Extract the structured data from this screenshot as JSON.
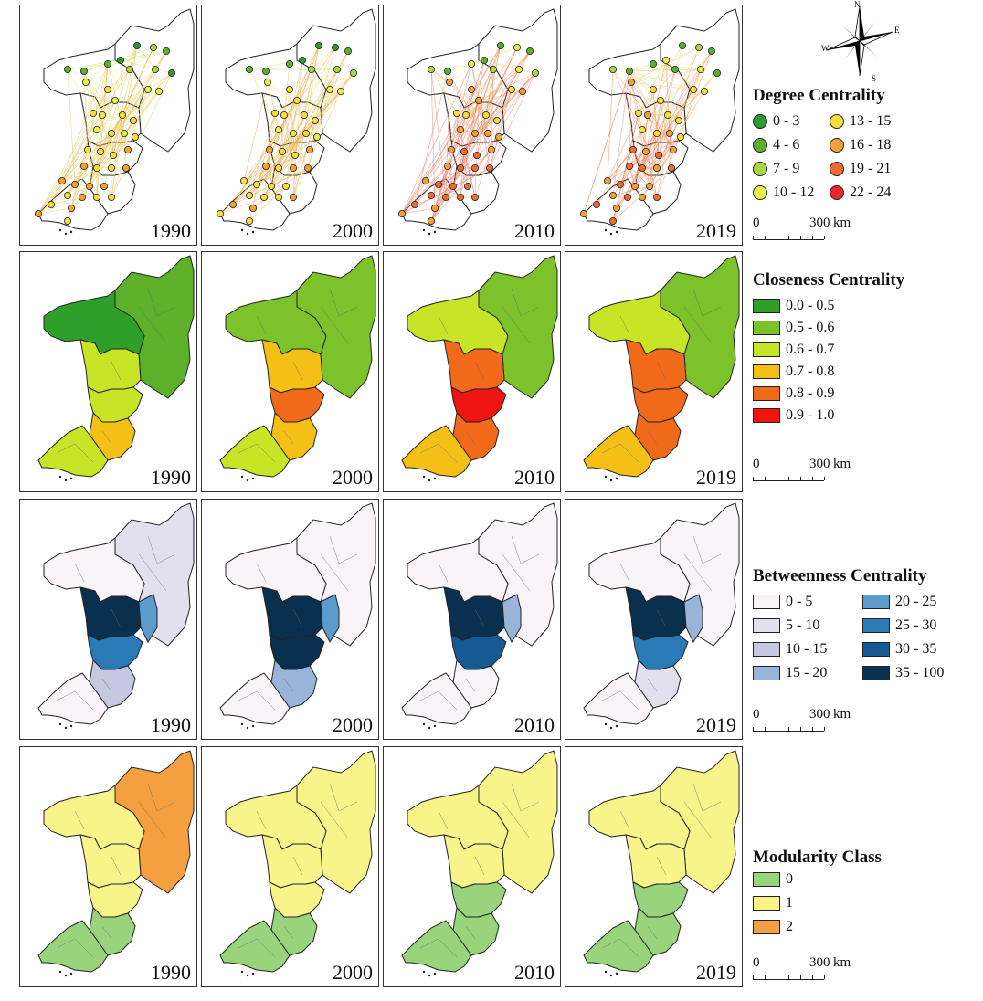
{
  "years": [
    "1990",
    "2000",
    "2010",
    "2019"
  ],
  "compass": {
    "n": "N",
    "s": "S",
    "e": "E",
    "w": "W"
  },
  "scale": {
    "zero": "0",
    "value": "300",
    "unit": "km"
  },
  "degree": {
    "title": "Degree Centrality",
    "items": [
      {
        "label": "0 - 3",
        "color": "#2e9a2e"
      },
      {
        "label": "4 - 6",
        "color": "#5cb030"
      },
      {
        "label": "7 - 9",
        "color": "#a8d840"
      },
      {
        "label": "10 - 12",
        "color": "#e6f04a"
      },
      {
        "label": "13 - 15",
        "color": "#f8dc38"
      },
      {
        "label": "16 - 18",
        "color": "#f4a034"
      },
      {
        "label": "19 - 21",
        "color": "#ee6a2e"
      },
      {
        "label": "22 - 24",
        "color": "#e8282a"
      }
    ]
  },
  "closeness": {
    "title": "Closeness Centrality",
    "items": [
      {
        "label": "0.0 - 0.5",
        "color": "#2ea02a"
      },
      {
        "label": "0.5 - 0.6",
        "color": "#7cc22a"
      },
      {
        "label": "0.6 - 0.7",
        "color": "#c8e426"
      },
      {
        "label": "0.7 - 0.8",
        "color": "#f4c016"
      },
      {
        "label": "0.8 - 0.9",
        "color": "#f06a1a"
      },
      {
        "label": "0.9 - 1.0",
        "color": "#ee1410"
      }
    ]
  },
  "betweenness": {
    "title": "Betweenness Centrality",
    "items": [
      {
        "label": "0 - 5",
        "color": "#f8f4f8"
      },
      {
        "label": "5 - 10",
        "color": "#e2e0ee"
      },
      {
        "label": "10 - 15",
        "color": "#c4c8e0"
      },
      {
        "label": "15 - 20",
        "color": "#98b4d8"
      },
      {
        "label": "20 - 25",
        "color": "#5c9ccc"
      },
      {
        "label": "25 - 30",
        "color": "#2a7ab8"
      },
      {
        "label": "30 - 35",
        "color": "#165a94"
      },
      {
        "label": "35 - 100",
        "color": "#0a3050"
      }
    ]
  },
  "modularity": {
    "title": "Modularity Class",
    "items": [
      {
        "label": "0",
        "color": "#98d47c"
      },
      {
        "label": "1",
        "color": "#f8f48a"
      },
      {
        "label": "2",
        "color": "#f4a040"
      }
    ]
  },
  "maps": {
    "degree": [
      {
        "north": "#b8e05a",
        "mid": "#f4e66a",
        "south": "#f6d058",
        "edge": "#e8c050"
      },
      {
        "north": "#c4e462",
        "mid": "#f6dc60",
        "south": "#f4b850",
        "edge": "#ecb050"
      },
      {
        "north": "#d8ec66",
        "mid": "#f4a84c",
        "south": "#f0904a",
        "edge": "#ec7860"
      },
      {
        "north": "#c8e460",
        "mid": "#f6c858",
        "south": "#f0a04c",
        "edge": "#ec8a5a"
      }
    ],
    "closeness": [
      {
        "nw": "#2ea02a",
        "ne": "#5cb02a",
        "mid": "#c8e426",
        "core": "#c8e426",
        "south": "#f4c016",
        "sw": "#c8e426"
      },
      {
        "nw": "#7cc22a",
        "ne": "#7cc22a",
        "mid": "#f4c016",
        "core": "#f06a1a",
        "south": "#f4c016",
        "sw": "#c8e426"
      },
      {
        "nw": "#c8e426",
        "ne": "#7cc22a",
        "mid": "#f06a1a",
        "core": "#ee1410",
        "south": "#f06a1a",
        "sw": "#f4c016"
      },
      {
        "nw": "#c8e426",
        "ne": "#7cc22a",
        "mid": "#f06a1a",
        "core": "#f06a1a",
        "south": "#f06a1a",
        "sw": "#f4c016"
      }
    ],
    "betweenness": [
      {
        "nw": "#f8f4f8",
        "ne": "#e2e0ee",
        "mid": "#0a3050",
        "core": "#2a7ab8",
        "south": "#c4c8e0",
        "sw": "#f8f4f8",
        "east": "#5c9ccc"
      },
      {
        "nw": "#f8f4f8",
        "ne": "#f8f4f8",
        "mid": "#0a3050",
        "core": "#0a3050",
        "south": "#98b4d8",
        "sw": "#f8f4f8",
        "east": "#5c9ccc"
      },
      {
        "nw": "#f8f4f8",
        "ne": "#f8f4f8",
        "mid": "#0a3050",
        "core": "#165a94",
        "south": "#f8f4f8",
        "sw": "#f8f4f8",
        "east": "#98b4d8"
      },
      {
        "nw": "#f8f4f8",
        "ne": "#f8f4f8",
        "mid": "#0a3050",
        "core": "#2a7ab8",
        "south": "#e2e0ee",
        "sw": "#f8f4f8",
        "east": "#98b4d8"
      }
    ],
    "modularity": [
      {
        "nw": "#f8f48a",
        "ne": "#f4a040",
        "mid": "#f8f48a",
        "core": "#f8f48a",
        "south": "#98d47c",
        "sw": "#98d47c"
      },
      {
        "nw": "#f8f48a",
        "ne": "#f8f48a",
        "mid": "#f8f48a",
        "core": "#f8f48a",
        "south": "#98d47c",
        "sw": "#98d47c"
      },
      {
        "nw": "#f8f48a",
        "ne": "#f8f48a",
        "mid": "#f8f48a",
        "core": "#98d47c",
        "south": "#98d47c",
        "sw": "#98d47c"
      },
      {
        "nw": "#f8f48a",
        "ne": "#f8f48a",
        "mid": "#f8f48a",
        "core": "#98d47c",
        "south": "#98d47c",
        "sw": "#98d47c"
      }
    ]
  }
}
